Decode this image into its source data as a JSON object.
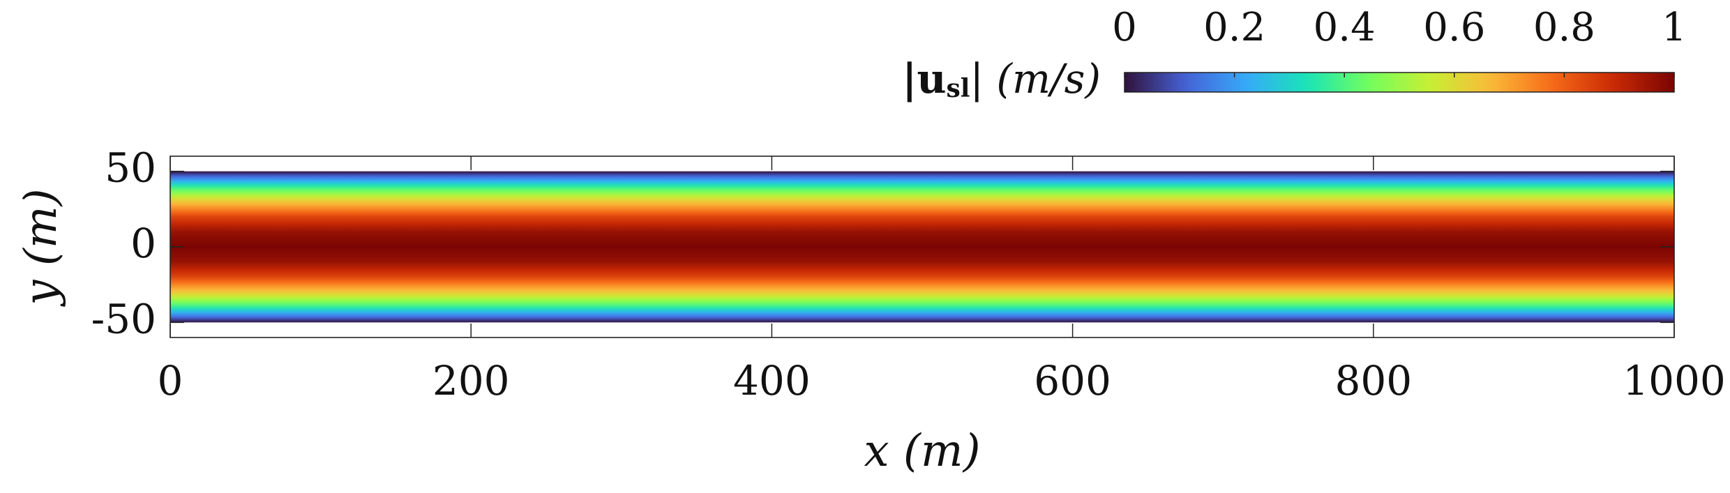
{
  "chart_data": {
    "type": "heatmap",
    "title": "",
    "xlabel": "x (m)",
    "ylabel": "y (m)",
    "xlim": [
      0,
      1000
    ],
    "ylim": [
      -60,
      60
    ],
    "x_ticks": [
      0,
      200,
      400,
      600,
      800,
      1000
    ],
    "x_tick_labels": [
      "0",
      "200",
      "400",
      "600",
      "800",
      "1000"
    ],
    "y_ticks": [
      50,
      0,
      -50
    ],
    "y_tick_labels": [
      "50",
      "0",
      "-50"
    ],
    "field": {
      "quantity": "|u_sl|",
      "domain_x": [
        0,
        1000
      ],
      "domain_y": [
        -50,
        50
      ],
      "profile_y": [
        -50,
        -40,
        -30,
        -20,
        -10,
        0,
        10,
        20,
        30,
        40,
        50
      ],
      "profile_value": [
        0.0,
        0.36,
        0.64,
        0.84,
        0.96,
        1.0,
        0.96,
        0.84,
        0.64,
        0.36,
        0.0
      ]
    },
    "colorbar": {
      "label": "|u_sl| (m/s)",
      "label_main": "|u",
      "label_sub": "sl",
      "label_rest": "| (m/s)",
      "range": [
        0,
        1
      ],
      "ticks": [
        0,
        0.2,
        0.4,
        0.6,
        0.8,
        1
      ],
      "tick_labels": [
        "0",
        "0.2",
        "0.4",
        "0.6",
        "0.8",
        "1"
      ],
      "placement": "top-right",
      "colormap": "turbo",
      "colors": [
        "#30123b",
        "#4662d7",
        "#36aaf9",
        "#1ae4b6",
        "#72fe5e",
        "#c7ef34",
        "#faba39",
        "#f66b19",
        "#ca2a04",
        "#7a0403"
      ]
    },
    "grid": false
  }
}
